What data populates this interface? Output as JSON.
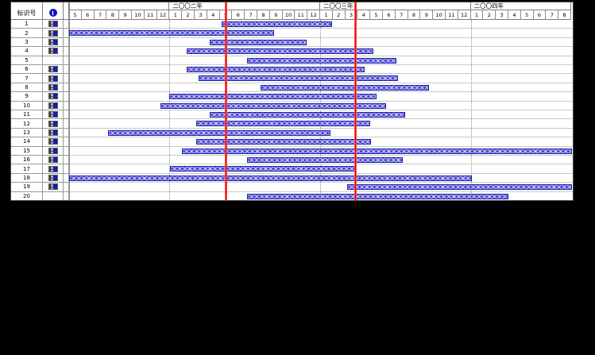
{
  "app": {
    "view_name": "gantt-chart-view"
  },
  "table": {
    "id_header": "标识号",
    "info_header_icon": "info-circle-icon",
    "info_header_glyph": "i",
    "rows": [
      {
        "id": "1",
        "has_indicator": true
      },
      {
        "id": "2",
        "has_indicator": true
      },
      {
        "id": "3",
        "has_indicator": true
      },
      {
        "id": "4",
        "has_indicator": true
      },
      {
        "id": "5",
        "has_indicator": false
      },
      {
        "id": "6",
        "has_indicator": true
      },
      {
        "id": "7",
        "has_indicator": true
      },
      {
        "id": "8",
        "has_indicator": true
      },
      {
        "id": "9",
        "has_indicator": true
      },
      {
        "id": "10",
        "has_indicator": true
      },
      {
        "id": "11",
        "has_indicator": true
      },
      {
        "id": "12",
        "has_indicator": true
      },
      {
        "id": "13",
        "has_indicator": true
      },
      {
        "id": "14",
        "has_indicator": true
      },
      {
        "id": "15",
        "has_indicator": true
      },
      {
        "id": "16",
        "has_indicator": true
      },
      {
        "id": "17",
        "has_indicator": true
      },
      {
        "id": "18",
        "has_indicator": true
      },
      {
        "id": "19",
        "has_indicator": true
      },
      {
        "id": "20",
        "has_indicator": false
      }
    ]
  },
  "timeline": {
    "years": [
      {
        "label": "",
        "months": [
          "5",
          "6",
          "7",
          "8",
          "9",
          "10",
          "11",
          "12"
        ]
      },
      {
        "label": "二〇〇二年",
        "months": [
          "1",
          "2",
          "3",
          "4",
          "5",
          "6",
          "7",
          "8",
          "9",
          "10",
          "11",
          "12"
        ]
      },
      {
        "label": "二〇〇三年",
        "months": [
          "1",
          "2",
          "3",
          "4",
          "5",
          "6",
          "7",
          "8",
          "9",
          "10",
          "11",
          "12"
        ]
      },
      {
        "label": "二〇〇四年",
        "months": [
          "1",
          "2",
          "3",
          "4",
          "5",
          "6",
          "7",
          "8"
        ]
      }
    ]
  },
  "chart_data": {
    "type": "gantt",
    "title": "",
    "x_axis": "months, May 2001 (offset 0) through Aug 2004 (offset 40)",
    "timeline_epoch": "2001-05",
    "tasks": [
      {
        "id": 1,
        "start": 12.15,
        "end": 20.95
      },
      {
        "id": 2,
        "start": 0.0,
        "end": 16.35
      },
      {
        "id": 3,
        "start": 11.2,
        "end": 18.9
      },
      {
        "id": 4,
        "start": 9.35,
        "end": 24.25
      },
      {
        "id": 5,
        "start": 14.2,
        "end": 26.1
      },
      {
        "id": 6,
        "start": 9.35,
        "end": 23.55
      },
      {
        "id": 7,
        "start": 10.3,
        "end": 26.2
      },
      {
        "id": 8,
        "start": 15.25,
        "end": 28.65
      },
      {
        "id": 9,
        "start": 7.95,
        "end": 24.5
      },
      {
        "id": 10,
        "start": 7.3,
        "end": 25.25
      },
      {
        "id": 11,
        "start": 11.2,
        "end": 26.75
      },
      {
        "id": 12,
        "start": 10.1,
        "end": 24.0
      },
      {
        "id": 13,
        "start": 3.1,
        "end": 20.8
      },
      {
        "id": 14,
        "start": 10.1,
        "end": 24.05
      },
      {
        "id": 15,
        "start": 9.0,
        "end": 40.05
      },
      {
        "id": 16,
        "start": 14.2,
        "end": 26.6
      },
      {
        "id": 17,
        "start": 8.05,
        "end": 22.85
      },
      {
        "id": 18,
        "start": 0.0,
        "end": 32.1
      },
      {
        "id": 19,
        "start": 22.15,
        "end": 40.05
      },
      {
        "id": 20,
        "start": 14.2,
        "end": 35.0
      }
    ],
    "status_date_lines": [
      12.5,
      22.8
    ],
    "year_boundaries": [
      8,
      20,
      32
    ],
    "legend": "none",
    "grid": "horizontal row separators + dotted year boundary lines"
  },
  "colors": {
    "bar_fill": "#4949d4",
    "bar_border": "#1f1fa8",
    "status_line": "#f20000",
    "chart_background": "#ffffff",
    "page_background": "#000000",
    "indicator_blue": "#1414c8"
  }
}
